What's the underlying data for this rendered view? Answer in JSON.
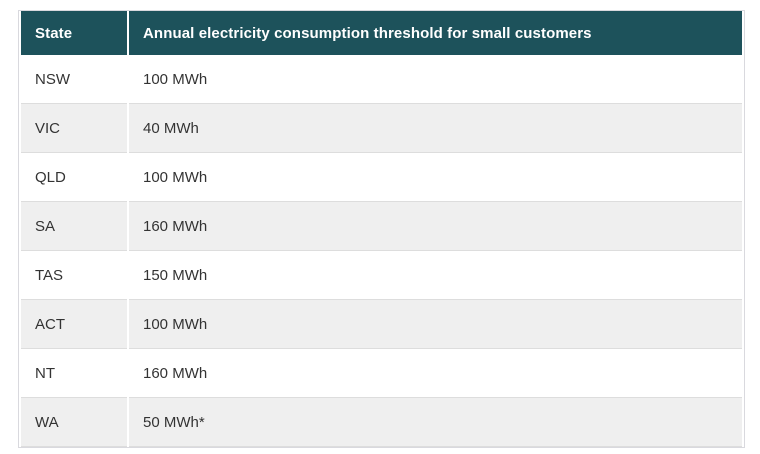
{
  "chart_data": {
    "type": "table",
    "columns": [
      "State",
      "Annual electricity consumption threshold for small customers"
    ],
    "rows": [
      [
        "NSW",
        "100 MWh"
      ],
      [
        "VIC",
        "40 MWh"
      ],
      [
        "QLD",
        "100 MWh"
      ],
      [
        "SA",
        "160 MWh"
      ],
      [
        "TAS",
        "150 MWh"
      ],
      [
        "ACT",
        "100 MWh"
      ],
      [
        "NT",
        "160 MWh"
      ],
      [
        "WA",
        "50 MWh*"
      ]
    ],
    "layout": {
      "header_position": "top",
      "zebra_striping": true,
      "first_row_stripe": "white"
    }
  },
  "colors": {
    "header_bg": "#1d525b",
    "header_text": "#ffffff",
    "row_bg": "#ffffff",
    "row_alt_bg": "#efefef",
    "body_text": "#333333",
    "row_border": "#dddddd",
    "outer_border": "#d9d9de",
    "column_divider": "#ffffff"
  }
}
